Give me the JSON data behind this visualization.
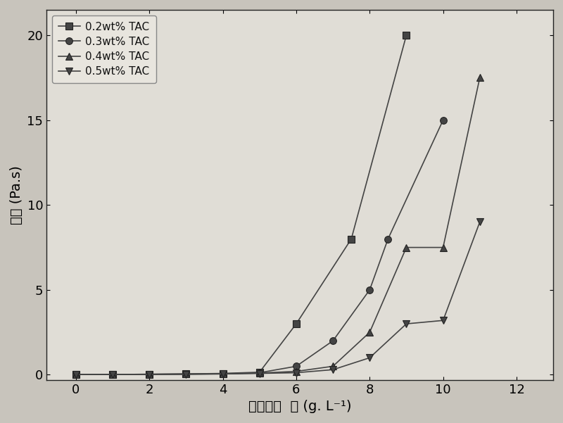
{
  "series": [
    {
      "label": "0.2wt% TAC",
      "marker": "s",
      "x": [
        0,
        1,
        2,
        3,
        4,
        5,
        6,
        7.5,
        9
      ],
      "y": [
        0.02,
        0.02,
        0.03,
        0.05,
        0.08,
        0.15,
        3.0,
        8.0,
        20.0
      ]
    },
    {
      "label": "0.3wt% TAC",
      "marker": "o",
      "x": [
        0,
        1,
        2,
        3,
        4,
        5,
        6,
        7,
        8,
        8.5,
        10
      ],
      "y": [
        0.02,
        0.02,
        0.03,
        0.04,
        0.06,
        0.12,
        0.5,
        2.0,
        5.0,
        8.0,
        15.0
      ]
    },
    {
      "label": "0.4wt% TAC",
      "marker": "^",
      "x": [
        0,
        1,
        2,
        3,
        4,
        5,
        6,
        7,
        8,
        9,
        10,
        11
      ],
      "y": [
        0.02,
        0.02,
        0.03,
        0.04,
        0.05,
        0.1,
        0.2,
        0.5,
        2.5,
        7.5,
        7.5,
        17.5
      ]
    },
    {
      "label": "0.5wt% TAC",
      "marker": "v",
      "x": [
        0,
        1,
        2,
        3,
        4,
        5,
        6,
        7,
        8,
        9,
        10,
        11
      ],
      "y": [
        0.02,
        0.02,
        0.02,
        0.03,
        0.05,
        0.08,
        0.12,
        0.3,
        1.0,
        3.0,
        3.2,
        9.0
      ]
    }
  ],
  "xlabel_cn": "碳酸钓浓  度",
  "xlabel_en": " (g. L⁻¹)",
  "ylabel_cn": "粘度",
  "ylabel_en": " (Pa.s)",
  "xlim": [
    -0.8,
    13.0
  ],
  "ylim": [
    -0.3,
    21.5
  ],
  "xticks": [
    0,
    2,
    4,
    6,
    8,
    10,
    12
  ],
  "yticks": [
    0,
    5,
    10,
    15,
    20
  ],
  "line_color": "#444444",
  "marker_facecolor": "#444444",
  "marker_edgecolor": "#222222",
  "background_color": "#c8c4bc",
  "plot_bg_color": "#e0ddd6",
  "figsize": [
    8.0,
    6.01
  ],
  "dpi": 100,
  "legend_loc": "upper left",
  "markersize": 7,
  "linewidth": 1.2
}
